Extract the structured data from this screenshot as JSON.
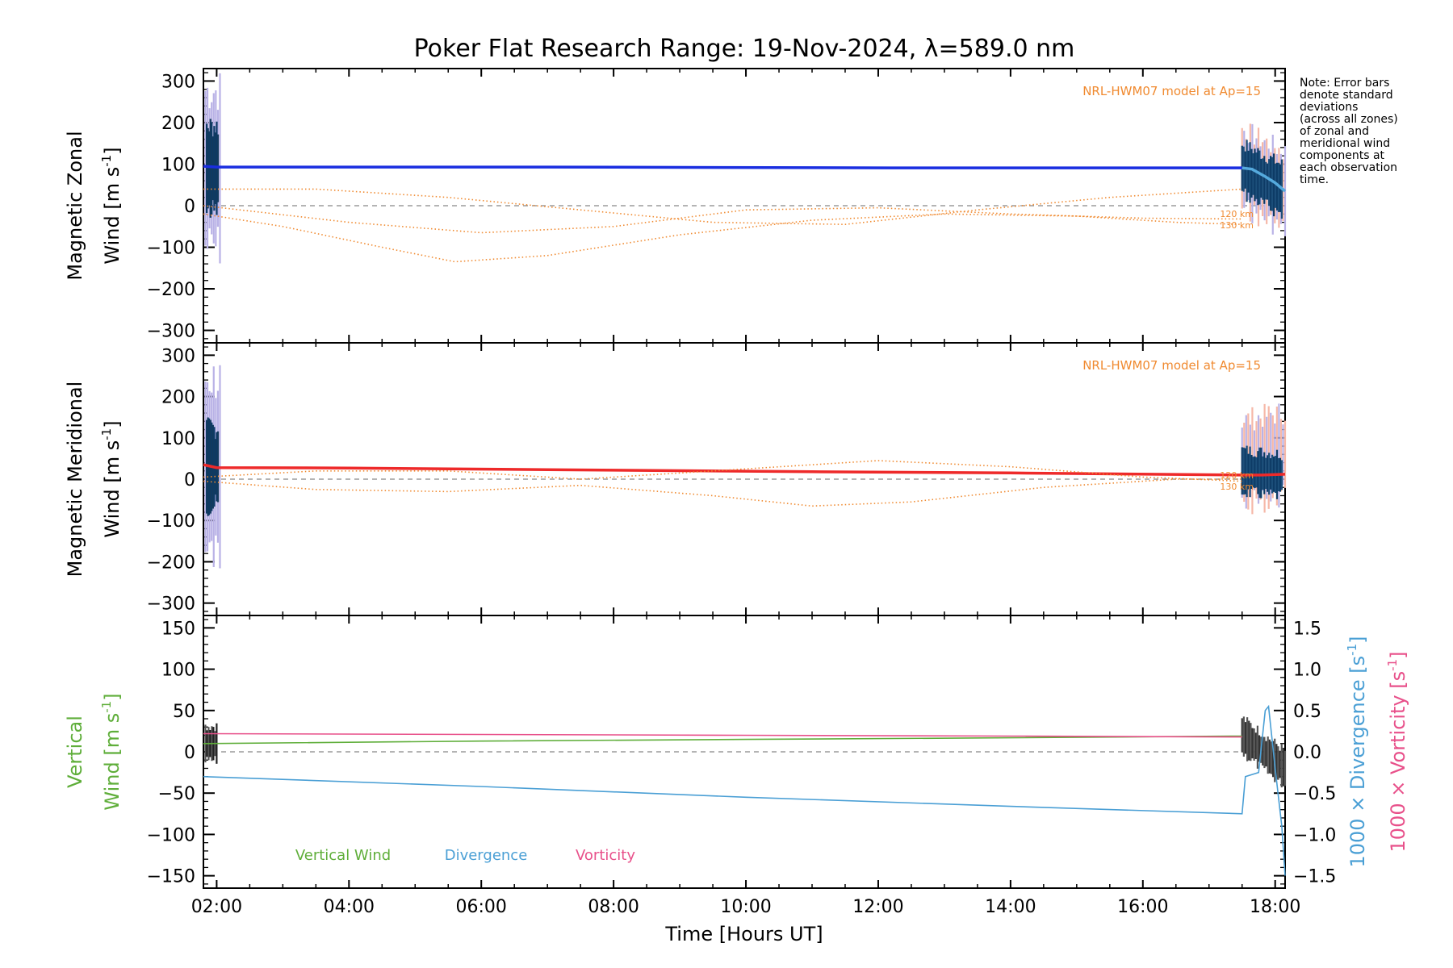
{
  "chart_data": [
    {
      "type": "line",
      "title": "Poker Flat Research Range: 19-Nov-2024, λ=589.0 nm",
      "ylabel_line1": "Magnetic Zonal",
      "ylabel_line2": "Wind [m s",
      "ylabel_sup": "-1",
      "ylabel_close": "]",
      "ylim": [
        -330,
        330
      ],
      "yticks": [
        300,
        200,
        100,
        0,
        -100,
        -200,
        -300
      ],
      "yticklabels": [
        "300",
        "200",
        "100",
        "0",
        "−100",
        "−200",
        "−300"
      ],
      "model_label": "NRL-HWM07 model at Ap=15",
      "alt_labels": [
        "120 km",
        "130 km"
      ],
      "note_lines": [
        "Note: Error bars",
        "denote standard",
        "deviations",
        "(across all zones)",
        "of zonal and",
        "meridional wind",
        "components at",
        "each observation",
        "time."
      ],
      "series": [
        {
          "name": "Measured zonal wind",
          "color": "#1a2ee0",
          "x": [
            1.8,
            2.0,
            4.0,
            7.0,
            12.2,
            16.0,
            17.5
          ],
          "y": [
            95,
            93,
            93,
            93,
            91,
            91,
            91
          ]
        },
        {
          "name": "Measured zonal wind (end)",
          "color": "#55aadd",
          "x": [
            17.5,
            17.65,
            17.85,
            18.0,
            18.15
          ],
          "y": [
            91,
            88,
            70,
            55,
            35
          ]
        },
        {
          "name": "HWM07 120 km",
          "color": "#f08a30",
          "x": [
            1.8,
            3.0,
            4.5,
            5.6,
            7.0,
            9.0,
            11.0,
            13.0,
            15.0,
            16.5,
            17.5
          ],
          "y": [
            -20,
            -50,
            -100,
            -135,
            -120,
            -70,
            -35,
            -20,
            -25,
            -40,
            -45
          ]
        },
        {
          "name": "HWM07 130 km",
          "color": "#f08a30",
          "x": [
            1.8,
            4.0,
            6.0,
            8.0,
            10.0,
            12.0,
            14.0,
            16.0,
            17.5
          ],
          "y": [
            0,
            -40,
            -65,
            -50,
            -10,
            -5,
            -20,
            -30,
            -32
          ]
        },
        {
          "name": "HWM07 upper",
          "color": "#f08a30",
          "x": [
            1.8,
            3.5,
            5.5,
            7.5,
            9.5,
            11.5,
            13.5,
            15.5,
            17.5
          ],
          "y": [
            40,
            40,
            20,
            -10,
            -40,
            -45,
            -10,
            20,
            40
          ]
        }
      ]
    },
    {
      "type": "line",
      "ylabel_line1": "Magnetic Meridional",
      "ylabel_line2": "Wind [m s",
      "ylabel_sup": "-1",
      "ylabel_close": "]",
      "ylim": [
        -330,
        330
      ],
      "yticks": [
        300,
        200,
        100,
        0,
        -100,
        -200,
        -300
      ],
      "yticklabels": [
        "300",
        "200",
        "100",
        "0",
        "−100",
        "−200",
        "−300"
      ],
      "model_label": "NRL-HWM07 model at Ap=15",
      "alt_labels": [
        "120 km",
        "130 km"
      ],
      "series": [
        {
          "name": "Measured meridional wind",
          "color": "#ee2a2a",
          "x": [
            1.8,
            2.0,
            4.0,
            7.0,
            11.0,
            14.0,
            17.5,
            17.8,
            18.15
          ],
          "y": [
            35,
            28,
            27,
            23,
            18,
            15,
            10,
            10,
            12
          ]
        },
        {
          "name": "HWM07 120 km",
          "color": "#f08a30",
          "x": [
            1.8,
            3.5,
            5.5,
            7.5,
            9.5,
            11.0,
            12.5,
            14.5,
            16.5,
            17.5
          ],
          "y": [
            -5,
            -25,
            -30,
            -15,
            -40,
            -65,
            -55,
            -20,
            0,
            0
          ]
        },
        {
          "name": "HWM07 130 km",
          "color": "#f08a30",
          "x": [
            1.8,
            3.5,
            5.5,
            7.5,
            9.5,
            12.0,
            14.0,
            16.0,
            17.5
          ],
          "y": [
            5,
            20,
            20,
            0,
            20,
            45,
            30,
            5,
            -5
          ]
        }
      ]
    },
    {
      "type": "line",
      "ylabel_line1": "Vertical",
      "ylabel_line2": "Wind [m s",
      "ylabel_sup": "-1",
      "ylabel_close": "]",
      "ylim": [
        -165,
        165
      ],
      "yticks": [
        150,
        100,
        50,
        0,
        -50,
        -100,
        -150
      ],
      "yticklabels": [
        "150",
        "100",
        "50",
        "0",
        "−50",
        "−100",
        "−150"
      ],
      "y2lim": [
        -1.65,
        1.65
      ],
      "y2ticks": [
        1.5,
        1.0,
        0.5,
        0.0,
        -0.5,
        -1.0,
        -1.5
      ],
      "y2ticklabels": [
        "1.5",
        "1.0",
        "0.5",
        "0.0",
        "−0.5",
        "−1.0",
        "−1.5"
      ],
      "y2label_div": "1000 × Divergence [s",
      "y2label_vort": "1000 × Vorticity [s",
      "y2label_sup": "-1",
      "y2label_close": "]",
      "legend": [
        "Vertical Wind",
        "Divergence",
        "Vorticity"
      ],
      "series": [
        {
          "name": "Vertical Wind",
          "color": "#5fae3a",
          "x": [
            1.8,
            6.0,
            10.0,
            14.0,
            17.5
          ],
          "y": [
            10,
            13,
            15,
            17,
            19
          ]
        },
        {
          "name": "Vorticity",
          "color": "#e8508a",
          "axis": "y2",
          "x": [
            1.8,
            6.0,
            10.0,
            14.0,
            17.5
          ],
          "y": [
            0.22,
            0.21,
            0.2,
            0.19,
            0.18
          ]
        },
        {
          "name": "Divergence",
          "color": "#4a9fd5",
          "axis": "y2",
          "x": [
            1.8,
            6.0,
            10.0,
            14.0,
            17.5,
            17.55,
            17.75,
            17.85,
            17.9,
            18.0,
            18.1,
            18.15
          ],
          "y": [
            -0.3,
            -0.42,
            -0.55,
            -0.66,
            -0.75,
            -0.3,
            -0.25,
            0.5,
            0.55,
            -0.2,
            -0.9,
            -1.5
          ]
        }
      ]
    }
  ],
  "x_axis": {
    "label": "Time [Hours UT]",
    "xlim": [
      1.8,
      18.15
    ],
    "ticks": [
      2,
      4,
      6,
      8,
      10,
      12,
      14,
      16,
      18
    ],
    "ticklabels": [
      "02:00",
      "04:00",
      "06:00",
      "08:00",
      "10:00",
      "12:00",
      "14:00",
      "16:00",
      "18:00"
    ]
  },
  "colors": {
    "axis": "#000000",
    "zero_line": "#888888",
    "errorbar": "#0d3b66",
    "errorbar_pink": "#f6b8a8",
    "errorbar_lav": "#b9b2e6",
    "model": "#f08a30",
    "vertical": "#5fae3a",
    "divergence": "#4a9fd5",
    "vorticity": "#e8508a"
  }
}
